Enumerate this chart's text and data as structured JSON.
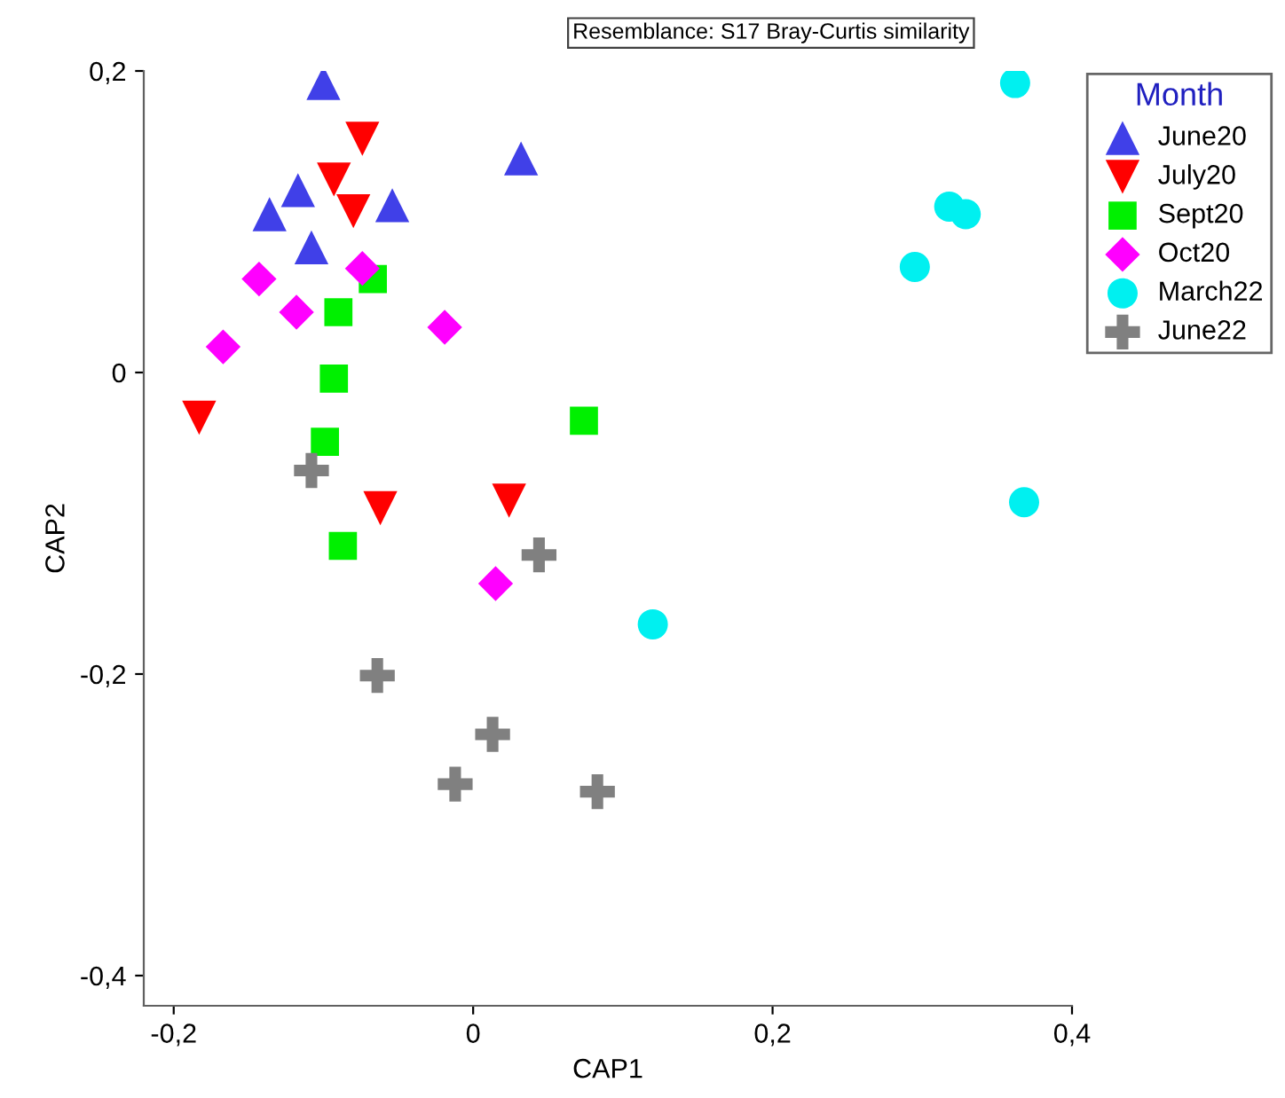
{
  "chart_data": {
    "type": "scatter",
    "xlabel": "CAP1",
    "ylabel": "CAP2",
    "legend_title": "Month",
    "legend": "top right",
    "grid": false,
    "xlim": [
      -0.22,
      0.4
    ],
    "ylim": [
      -0.42,
      0.2
    ],
    "xticks": [
      {
        "value": -0.2,
        "label": "-0,2"
      },
      {
        "value": 0,
        "label": "0"
      },
      {
        "value": 0.2,
        "label": "0,2"
      },
      {
        "value": 0.4,
        "label": "0,4"
      }
    ],
    "yticks": [
      {
        "value": -0.4,
        "label": "-0,4"
      },
      {
        "value": -0.2,
        "label": "-0,2"
      },
      {
        "value": 0,
        "label": "0"
      },
      {
        "value": 0.2,
        "label": "0,2"
      }
    ],
    "annotations": [
      "Resemblance: S17 Bray-Curtis similarity"
    ],
    "series": [
      {
        "name": "June20",
        "color": "#4040e8",
        "marker": "triangle",
        "x": [
          -0.1,
          -0.117,
          -0.136,
          -0.108,
          -0.054,
          0.032
        ],
        "values": [
          0.192,
          0.121,
          0.105,
          0.083,
          0.111,
          0.142
        ]
      },
      {
        "name": "July20",
        "color": "#ff0000",
        "marker": "triangle_down",
        "x": [
          -0.074,
          -0.093,
          -0.08,
          -0.183,
          -0.062,
          0.024
        ],
        "values": [
          0.155,
          0.128,
          0.107,
          -0.03,
          -0.09,
          -0.085
        ]
      },
      {
        "name": "Sept20",
        "color": "#00f000",
        "marker": "square",
        "x": [
          -0.067,
          -0.09,
          -0.093,
          -0.099,
          -0.087,
          0.074
        ],
        "values": [
          0.062,
          0.04,
          -0.004,
          -0.046,
          -0.115,
          -0.032
        ]
      },
      {
        "name": "Oct20",
        "color": "#ff00ff",
        "marker": "diamond",
        "x": [
          -0.143,
          -0.074,
          -0.118,
          -0.167,
          -0.019,
          0.015
        ],
        "values": [
          0.062,
          0.069,
          0.04,
          0.017,
          0.03,
          -0.14
        ]
      },
      {
        "name": "March22",
        "color": "#00f0f0",
        "marker": "circle",
        "x": [
          0.362,
          0.318,
          0.329,
          0.295,
          0.368,
          0.12
        ],
        "values": [
          0.192,
          0.11,
          0.105,
          0.07,
          -0.086,
          -0.167
        ]
      },
      {
        "name": "June22",
        "color": "#808080",
        "marker": "cross",
        "x": [
          -0.108,
          0.044,
          -0.064,
          0.013,
          -0.012,
          0.083
        ],
        "values": [
          -0.065,
          -0.121,
          -0.201,
          -0.24,
          -0.273,
          -0.278
        ]
      }
    ]
  }
}
